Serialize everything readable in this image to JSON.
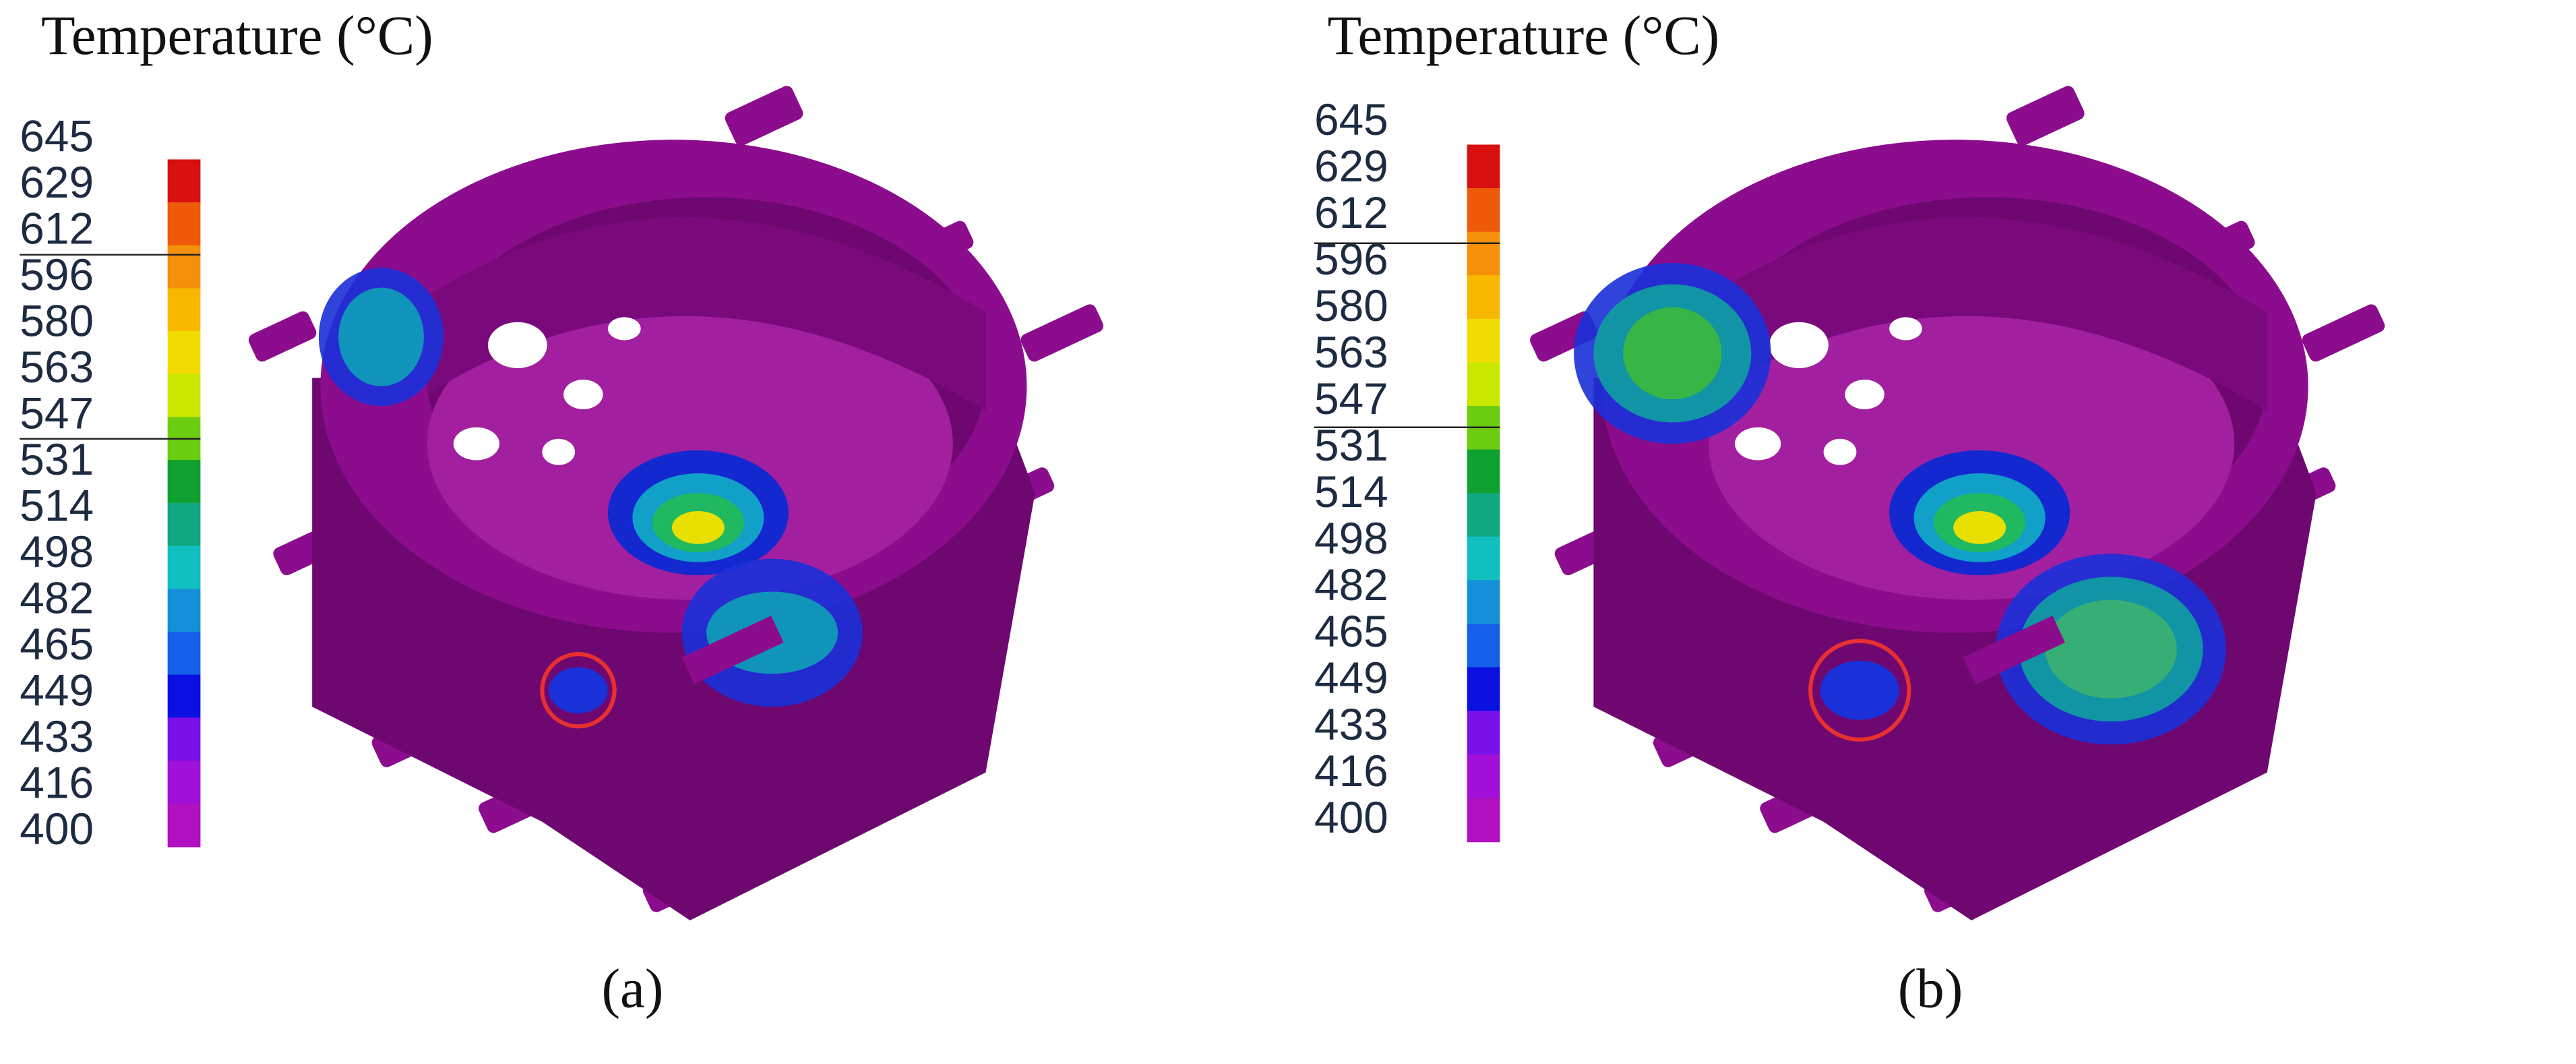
{
  "panels": [
    {
      "title": "Temperature (°C)",
      "scale_labels": [
        645,
        629,
        612,
        596,
        580,
        563,
        547,
        531,
        514,
        498,
        482,
        465,
        449,
        433,
        416,
        400
      ],
      "caption": "(a)"
    },
    {
      "title": "Temperature (°C)",
      "scale_labels": [
        645,
        629,
        612,
        596,
        580,
        563,
        547,
        531,
        514,
        498,
        482,
        465,
        449,
        433,
        416,
        400
      ],
      "caption": "(b)"
    }
  ]
}
